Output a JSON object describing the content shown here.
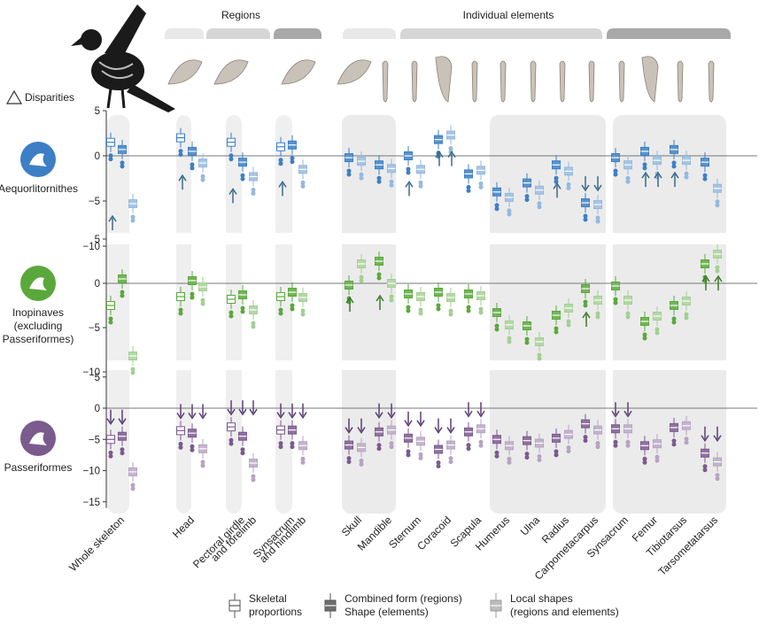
{
  "chart_data": {
    "type": "box",
    "header": {
      "regions": "Regions",
      "elements": "Individual elements",
      "disparities": "Disparities"
    },
    "categories": [
      "Whole skeleton",
      "Head",
      "Pectoral girdle and forelimb",
      "Synsacrum and hindlimb",
      "Skull",
      "Mandible",
      "Sternum",
      "Coracoid",
      "Scapula",
      "Humerus",
      "Ulna",
      "Radius",
      "Carpometacarpus",
      "Synsacrum",
      "Femur",
      "Tibiotarsus",
      "Tarsometatarsus"
    ],
    "category_labels": [
      "Whole skeleton",
      "Head",
      "Pectoral girdle",
      "and forelimb",
      "Synsacrum",
      "and hindlimb",
      "Skull",
      "Mandible",
      "Sternum",
      "Coracoid",
      "Scapula",
      "Humerus",
      "Ulna",
      "Radius",
      "Carpometacarpus",
      "Synsacrum",
      "Femur",
      "Tibiotarsus",
      "Tarsometatarsus"
    ],
    "ytick_labels": [
      [
        "5",
        "0",
        "−5",
        "−10"
      ],
      [
        "5",
        "0",
        "−5",
        "−10"
      ],
      [
        "5",
        "0",
        "−5",
        "−10",
        "−15"
      ]
    ],
    "panels": [
      {
        "name": "Aequorlitornithes",
        "ylim": [
          -12,
          5
        ],
        "color": "#3d7fc4",
        "proportions": {
          "Whole skeleton": 1.5,
          "Head": 2.0,
          "Pectoral girdle and forelimb": 1.5,
          "Synsacrum and hindlimb": 1.0
        },
        "form": {
          "Whole skeleton": 0.7,
          "Head": 0.5,
          "Pectoral girdle and forelimb": -0.7,
          "Synsacrum and hindlimb": 1.2,
          "Skull": -0.2,
          "Mandible": -1.0,
          "Sternum": 0.0,
          "Coracoid": 1.8,
          "Scapula": -2.0,
          "Humerus": -4.0,
          "Ulna": -3.0,
          "Radius": -1.0,
          "Carpometacarpus": -5.2,
          "Synsacrum": -0.2,
          "Femur": 0.5,
          "Tibiotarsus": 0.7,
          "Tarsometatarsus": -0.7
        },
        "local": {
          "Whole skeleton": -5.3,
          "Head": -0.8,
          "Pectoral girdle and forelimb": -2.3,
          "Synsacrum and hindlimb": -1.5,
          "Skull": -0.6,
          "Mandible": -1.4,
          "Sternum": -1.5,
          "Coracoid": 2.3,
          "Scapula": -1.6,
          "Humerus": -4.6,
          "Ulna": -3.8,
          "Radius": -1.7,
          "Carpometacarpus": -5.4,
          "Synsacrum": -1.0,
          "Femur": -0.5,
          "Tibiotarsus": -0.5,
          "Tarsometatarsus": -3.6
        },
        "arrows_up": [
          "Whole skeleton",
          "Head",
          "Pectoral girdle and forelimb",
          "Synsacrum and hindlimb",
          "Sternum",
          "Coracoid",
          "Coracoid",
          "Radius",
          "Femur",
          "Femur",
          "Tibiotarsus"
        ],
        "arrows_down": [
          "Carpometacarpus",
          "Carpometacarpus"
        ]
      },
      {
        "name": "Inopinaves (excluding Passeriformes)",
        "ylim": [
          -12,
          5
        ],
        "color": "#5aa83c",
        "proportions": {
          "Whole skeleton": -2.5,
          "Head": -1.5,
          "Pectoral girdle and forelimb": -1.8,
          "Synsacrum and hindlimb": -1.5
        },
        "form": {
          "Whole skeleton": 0.5,
          "Head": 0.3,
          "Pectoral girdle and forelimb": -1.3,
          "Synsacrum and hindlimb": -1.0,
          "Skull": -0.2,
          "Mandible": 2.5,
          "Sternum": -1.2,
          "Coracoid": -1.0,
          "Scapula": -1.2,
          "Humerus": -3.3,
          "Ulna": -4.8,
          "Radius": -3.6,
          "Carpometacarpus": -0.6,
          "Synsacrum": -0.3,
          "Femur": -4.3,
          "Tibiotarsus": -2.5,
          "Tarsometatarsus": 2.2
        },
        "local": {
          "Whole skeleton": -8.2,
          "Head": -0.4,
          "Pectoral girdle and forelimb": -3.0,
          "Synsacrum and hindlimb": -1.6,
          "Skull": 2.2,
          "Mandible": 0.0,
          "Sternum": -1.5,
          "Coracoid": -1.6,
          "Scapula": -1.4,
          "Humerus": -4.7,
          "Ulna": -6.6,
          "Radius": -2.8,
          "Carpometacarpus": -1.9,
          "Synsacrum": -1.9,
          "Femur": -3.7,
          "Tibiotarsus": -2.0,
          "Tarsometatarsus": 3.3
        },
        "arrows_up": [
          "Skull",
          "Mandible",
          "Carpometacarpus",
          "Tarsometatarsus",
          "Tarsometatarsus"
        ],
        "arrows_down": []
      },
      {
        "name": "Passeriformes",
        "ylim": [
          -16,
          5
        ],
        "color": "#7b5a8e",
        "proportions": {
          "Whole skeleton": -5.0,
          "Head": -3.6,
          "Pectoral girdle and forelimb": -3.0,
          "Synsacrum and hindlimb": -3.5
        },
        "form": {
          "Whole skeleton": -4.5,
          "Head": -4.0,
          "Pectoral girdle and forelimb": -4.5,
          "Synsacrum and hindlimb": -3.5,
          "Skull": -5.9,
          "Mandible": -3.8,
          "Sternum": -4.8,
          "Coracoid": -6.6,
          "Scapula": -3.8,
          "Humerus": -5.0,
          "Ulna": -5.2,
          "Radius": -4.8,
          "Carpometacarpus": -2.5,
          "Synsacrum": -3.3,
          "Femur": -6.0,
          "Tibiotarsus": -3.1,
          "Tarsometatarsus": -7.2
        },
        "local": {
          "Whole skeleton": -10.2,
          "Head": -6.5,
          "Pectoral girdle and forelimb": -8.8,
          "Synsacrum and hindlimb": -6.0,
          "Skull": -6.3,
          "Mandible": -3.5,
          "Sternum": -5.3,
          "Coracoid": -5.9,
          "Scapula": -3.3,
          "Humerus": -6.0,
          "Ulna": -5.6,
          "Radius": -4.2,
          "Carpometacarpus": -3.5,
          "Synsacrum": -3.3,
          "Femur": -5.7,
          "Tibiotarsus": -2.8,
          "Tarsometatarsus": -8.6
        },
        "arrows_up": [],
        "arrows_down": [
          "Whole skeleton",
          "Whole skeleton",
          "Head",
          "Head",
          "Head",
          "Pectoral girdle and forelimb",
          "Pectoral girdle and forelimb",
          "Pectoral girdle and forelimb",
          "Synsacrum and hindlimb",
          "Synsacrum and hindlimb",
          "Synsacrum and hindlimb",
          "Skull",
          "Skull",
          "Mandible",
          "Mandible",
          "Sternum",
          "Sternum",
          "Coracoid",
          "Coracoid",
          "Scapula",
          "Scapula",
          "Synsacrum",
          "Synsacrum",
          "Tarsometatarsus",
          "Tarsometatarsus"
        ]
      }
    ],
    "legend": [
      {
        "key": "proportions",
        "label": [
          "Skeletal",
          "proportions"
        ]
      },
      {
        "key": "form",
        "label": [
          "Combined form (regions)",
          "Shape (elements)"
        ]
      },
      {
        "key": "local",
        "label": [
          "Local shapes",
          "(regions and elements)"
        ]
      }
    ]
  }
}
